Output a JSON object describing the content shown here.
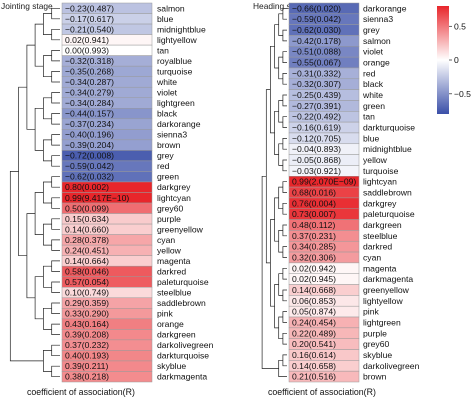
{
  "chart_data": [
    {
      "type": "heatmap",
      "title": "Jointing stage",
      "xlabel": "coefficient of association(R)",
      "dendrogram": "left",
      "rows": [
        {
          "module": "salmon",
          "value": -0.23,
          "label": "−0.23(0.487)"
        },
        {
          "module": "blue",
          "value": -0.17,
          "label": "−0.17(0.617)"
        },
        {
          "module": "midnightblue",
          "value": -0.21,
          "label": "−0.21(0.540)"
        },
        {
          "module": "lightyellow",
          "value": 0.02,
          "label": "0.02(0.941)"
        },
        {
          "module": "tan",
          "value": 0.0,
          "label": "0.00(0.993)"
        },
        {
          "module": "royalblue",
          "value": -0.32,
          "label": "−0.32(0.318)"
        },
        {
          "module": "turquoise",
          "value": -0.35,
          "label": "−0.35(0.268)"
        },
        {
          "module": "white",
          "value": -0.34,
          "label": "−0.34(0.287)"
        },
        {
          "module": "violet",
          "value": -0.34,
          "label": "−0.34(0.279)"
        },
        {
          "module": "lightgreen",
          "value": -0.34,
          "label": "−0.34(0.284)"
        },
        {
          "module": "black",
          "value": -0.44,
          "label": "−0.44(0.157)"
        },
        {
          "module": "darkorange",
          "value": -0.37,
          "label": "−0.37(0.234)"
        },
        {
          "module": "sienna3",
          "value": -0.4,
          "label": "−0.40(0.196)"
        },
        {
          "module": "brown",
          "value": -0.39,
          "label": "−0.39(0.204)"
        },
        {
          "module": "grey",
          "value": -0.72,
          "label": "−0.72(0.008)"
        },
        {
          "module": "red",
          "value": -0.59,
          "label": "−0.59(0.042)"
        },
        {
          "module": "green",
          "value": -0.62,
          "label": "−0.62(0.032)"
        },
        {
          "module": "darkgrey",
          "value": 0.8,
          "label": "0.80(0.002)"
        },
        {
          "module": "lightcyan",
          "value": 0.99,
          "label": "0.99(9.417E−10)"
        },
        {
          "module": "grey60",
          "value": 0.5,
          "label": "0.50(0.099)"
        },
        {
          "module": "purple",
          "value": 0.15,
          "label": "0.15(0.634)"
        },
        {
          "module": "greenyellow",
          "value": 0.14,
          "label": "0.14(0.660)"
        },
        {
          "module": "cyan",
          "value": 0.28,
          "label": "0.28(0.378)"
        },
        {
          "module": "yellow",
          "value": 0.24,
          "label": "0.24(0.451)"
        },
        {
          "module": "magenta",
          "value": 0.14,
          "label": "0.14(0.664)"
        },
        {
          "module": "darkred",
          "value": 0.58,
          "label": "0.58(0.046)"
        },
        {
          "module": "paleturquoise",
          "value": 0.57,
          "label": "0.57(0.054)"
        },
        {
          "module": "steelblue",
          "value": 0.1,
          "label": "0.10(0.749)"
        },
        {
          "module": "saddlebrown",
          "value": 0.29,
          "label": "0.29(0.359)"
        },
        {
          "module": "pink",
          "value": 0.33,
          "label": "0.33(0.290)"
        },
        {
          "module": "orange",
          "value": 0.43,
          "label": "0.43(0.164)"
        },
        {
          "module": "darkgreen",
          "value": 0.39,
          "label": "0.39(0.208)"
        },
        {
          "module": "darkolivegreen",
          "value": 0.37,
          "label": "0.37(0.232)"
        },
        {
          "module": "darkturquoise",
          "value": 0.4,
          "label": "0.40(0.193)"
        },
        {
          "module": "skyblue",
          "value": 0.39,
          "label": "0.39(0.211)"
        },
        {
          "module": "darkmagenta",
          "value": 0.38,
          "label": "0.38(0.218)"
        }
      ]
    },
    {
      "type": "heatmap",
      "title": "Heading stage",
      "xlabel": "coefficient of association(R)",
      "dendrogram": "left",
      "rows": [
        {
          "module": "darkorange",
          "value": -0.66,
          "label": "−0.66(0.020)"
        },
        {
          "module": "sienna3",
          "value": -0.59,
          "label": "−0.59(0.042)"
        },
        {
          "module": "grey",
          "value": -0.62,
          "label": "−0.62(0.030)"
        },
        {
          "module": "salmon",
          "value": -0.42,
          "label": "−0.42(0.178)"
        },
        {
          "module": "violet",
          "value": -0.51,
          "label": "−0.51(0.088)"
        },
        {
          "module": "orange",
          "value": -0.55,
          "label": "−0.55(0.067)"
        },
        {
          "module": "red",
          "value": -0.31,
          "label": "−0.31(0.332)"
        },
        {
          "module": "black",
          "value": -0.32,
          "label": "−0.32(0.307)"
        },
        {
          "module": "white",
          "value": -0.25,
          "label": "−0.25(0.439)"
        },
        {
          "module": "green",
          "value": -0.27,
          "label": "−0.27(0.391)"
        },
        {
          "module": "tan",
          "value": -0.22,
          "label": "−0.22(0.492)"
        },
        {
          "module": "darkturquoise",
          "value": -0.16,
          "label": "−0.16(0.619)"
        },
        {
          "module": "blue",
          "value": -0.12,
          "label": "−0.12(0.705)"
        },
        {
          "module": "midnightblue",
          "value": -0.04,
          "label": "−0.04(0.893)"
        },
        {
          "module": "yellow",
          "value": -0.05,
          "label": "−0.05(0.868)"
        },
        {
          "module": "turquoise",
          "value": -0.03,
          "label": "−0.03(0.921)"
        },
        {
          "module": "lightcyan",
          "value": 0.99,
          "label": "0.99(2.070E−09)"
        },
        {
          "module": "saddlebrown",
          "value": 0.68,
          "label": "0.68(0.016)"
        },
        {
          "module": "darkgrey",
          "value": 0.76,
          "label": "0.76(0.004)"
        },
        {
          "module": "paleturquoise",
          "value": 0.73,
          "label": "0.73(0.007)"
        },
        {
          "module": "darkgreen",
          "value": 0.48,
          "label": "0.48(0.112)"
        },
        {
          "module": "steelblue",
          "value": 0.37,
          "label": "0.37(0.231)"
        },
        {
          "module": "darkred",
          "value": 0.34,
          "label": "0.34(0.285)"
        },
        {
          "module": "cyan",
          "value": 0.32,
          "label": "0.32(0.306)"
        },
        {
          "module": "magenta",
          "value": 0.02,
          "label": "0.02(0.942)"
        },
        {
          "module": "darkmagenta",
          "value": 0.02,
          "label": "0.02(0.945)"
        },
        {
          "module": "greenyellow",
          "value": 0.14,
          "label": "0.14(0.668)"
        },
        {
          "module": "lightyellow",
          "value": 0.06,
          "label": "0.06(0.853)"
        },
        {
          "module": "pink",
          "value": 0.05,
          "label": "0.05(0.874)"
        },
        {
          "module": "lightgreen",
          "value": 0.24,
          "label": "0.24(0.454)"
        },
        {
          "module": "purple",
          "value": 0.22,
          "label": "0.22(0.489)"
        },
        {
          "module": "grey60",
          "value": 0.2,
          "label": "0.20(0.541)"
        },
        {
          "module": "skyblue",
          "value": 0.16,
          "label": "0.16(0.614)"
        },
        {
          "module": "darkolivegreen",
          "value": 0.14,
          "label": "0.14(0.658)"
        },
        {
          "module": "brown",
          "value": 0.21,
          "label": "0.21(0.516)"
        }
      ]
    }
  ],
  "legend": {
    "type": "colorbar",
    "ticks": [
      {
        "value": 0.5,
        "label": "0.5"
      },
      {
        "value": 0,
        "label": "0"
      },
      {
        "value": -0.5,
        "label": "−0.5"
      }
    ],
    "range": [
      -0.8,
      0.8
    ],
    "colors": {
      "positive": "#e8262b",
      "zero": "#ffffff",
      "negative": "#3a4fa8"
    }
  }
}
